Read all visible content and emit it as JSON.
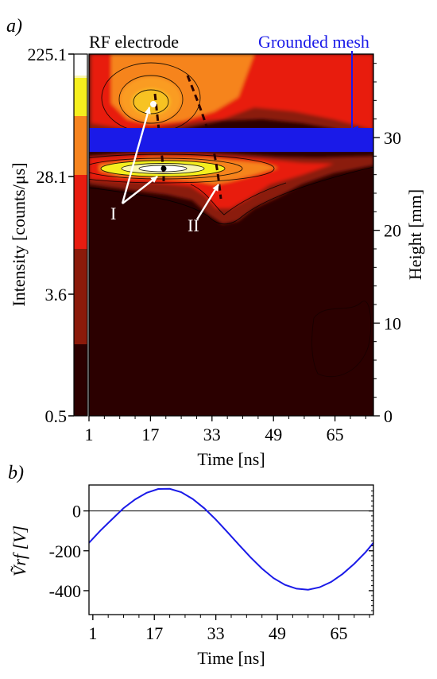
{
  "figure": {
    "panel_a_label": "a)",
    "panel_b_label": "b)"
  },
  "chart_data": [
    {
      "type": "heatmap",
      "panel": "a)",
      "xlabel": "Time [ns]",
      "ylabel": "Height [mm]",
      "colorbar_label": "Intensity [counts/μs]",
      "x_ticks": [
        1,
        17,
        33,
        49,
        65
      ],
      "xlim": [
        1,
        75
      ],
      "y_ticks": [
        0,
        10,
        20,
        30
      ],
      "ylim": [
        0,
        39
      ],
      "colorbar_ticks": [
        "225.1",
        "28.1",
        "3.6",
        "0.5"
      ],
      "colorbar_scale": "log",
      "colors": {
        "dark": "#2b0000",
        "maroon": "#8b1a0a",
        "red": "#e81c10",
        "orange": "#f6841f",
        "yellow": "#f5ef1e",
        "light": "#faf7b0",
        "white": "#ffffff"
      },
      "annotations": {
        "rf_electrode": "RF electrode",
        "grounded_mesh": "Grounded mesh",
        "peak_I": "I",
        "peak_II": "II",
        "mesh_color": "#1a1ae8"
      },
      "grounded_mesh_height_mm": [
        28.3,
        30.5
      ],
      "peaks": [
        {
          "label": "I",
          "time_ns": 17,
          "height_mm": 33.3
        },
        {
          "label": "I",
          "time_ns": 17,
          "height_mm": 26.3
        },
        {
          "label": "II",
          "time_ns": 33,
          "height_mm": 25.8
        }
      ]
    },
    {
      "type": "line",
      "panel": "b)",
      "xlabel": "Time [ns]",
      "ylabel": "Ṽrf [V]",
      "x_ticks": [
        1,
        17,
        33,
        49,
        65
      ],
      "xlim": [
        0,
        74
      ],
      "y_ticks": [
        0,
        -200,
        -400
      ],
      "ylim": [
        -520,
        130
      ],
      "line_color": "#1a1ae8",
      "series": [
        {
          "x": [
            0,
            3,
            6,
            9,
            12,
            15,
            18,
            21,
            24,
            27,
            30,
            33,
            36,
            39,
            42,
            45,
            48,
            51,
            54,
            57,
            60,
            63,
            66,
            69,
            72,
            74
          ],
          "y": [
            -160,
            -98,
            -42,
            14,
            58,
            91,
            110,
            111,
            94,
            60,
            13,
            -43,
            -106,
            -170,
            -232,
            -289,
            -337,
            -371,
            -390,
            -395,
            -383,
            -356,
            -316,
            -265,
            -206,
            -160
          ]
        }
      ]
    }
  ]
}
